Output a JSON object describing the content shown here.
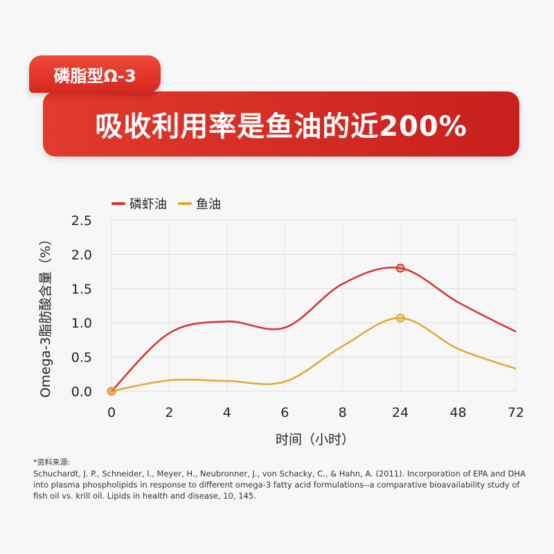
{
  "header": {
    "tag": "磷脂型Ω-3",
    "title": "吸收利用率是鱼油的近200%"
  },
  "colors": {
    "krill": "#d8322a",
    "fish": "#e0a82e",
    "banner": "#d8261f"
  },
  "chart_data": {
    "type": "line",
    "categories": [
      "0",
      "2",
      "4",
      "6",
      "8",
      "24",
      "48",
      "72"
    ],
    "ylabel": "Omega-3脂肪酸含量（%）",
    "xlabel": "时间（小时）",
    "yticks": [
      "0.0",
      "0.5",
      "1.0",
      "1.5",
      "2.0",
      "2.5"
    ],
    "ylim": [
      0,
      2.5
    ],
    "legend_position": "top-left",
    "grid": true,
    "series": [
      {
        "name": "磷虾油",
        "color": "#d8322a",
        "values": [
          0.0,
          0.85,
          1.02,
          0.93,
          1.57,
          1.8,
          1.3,
          0.87
        ],
        "markers_at": [
          0,
          5
        ]
      },
      {
        "name": "鱼油",
        "color": "#e0a82e",
        "values": [
          0.0,
          0.16,
          0.15,
          0.14,
          0.66,
          1.07,
          0.62,
          0.33
        ],
        "markers_at": [
          0,
          5
        ]
      }
    ]
  },
  "source": {
    "title": "*资料来源:",
    "text": "Schuchardt, J. P., Schneider, I., Meyer, H., Neubronner, J., von Schacky, C., & Hahn, A. (2011). Incorporation of EPA and DHA into plasma phospholipids in response to different omega-3 fatty acid formulations--a comparative bioavailability study of fish oil vs. krill oil. Lipids in health and disease, 10, 145."
  }
}
